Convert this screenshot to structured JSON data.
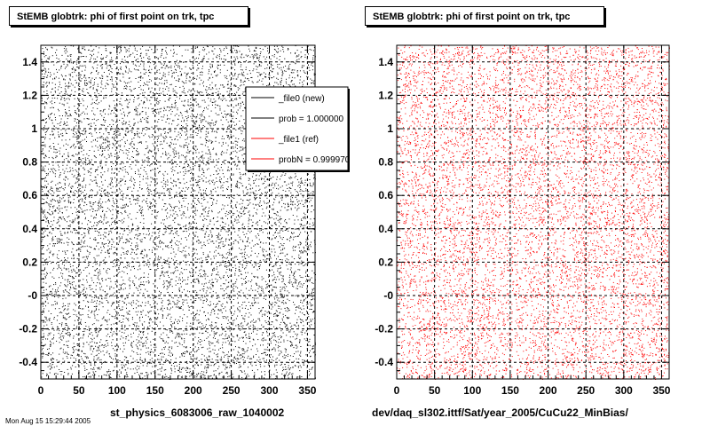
{
  "chart_data": [
    {
      "type": "scatter",
      "title": "StEMB globtrk: phi of first point on trk, tpc",
      "xlabel": "st_physics_6083006_raw_1040002",
      "ylabel": "",
      "xlim": [
        0,
        360
      ],
      "ylim": [
        -0.5,
        1.5
      ],
      "xticks": [
        0,
        50,
        100,
        150,
        200,
        250,
        300,
        350
      ],
      "yticks": [
        -0.4,
        -0.2,
        -0.0,
        0.2,
        0.4,
        0.6,
        0.8,
        1.0,
        1.2,
        1.4
      ],
      "ytick_labels": [
        "-0.4",
        "-0.2",
        "-0",
        "0.2",
        "0.4",
        "0.6",
        "0.8",
        "1",
        "1.2",
        "1.4"
      ],
      "grid": true,
      "marker_color": "#000000",
      "distribution": "uniform random points over x 0–360, y -0.5–1.5",
      "legend": {
        "placement": "top-right",
        "entries": [
          {
            "label": "_file0 (new)",
            "color": "#000000"
          },
          {
            "label": "prob = 1.000000",
            "color": "#000000"
          },
          {
            "label": "_file1 (ref)",
            "color": "#ff0000"
          },
          {
            "label": "probN = 0.999970",
            "color": "#ff0000"
          }
        ]
      }
    },
    {
      "type": "scatter",
      "title": "StEMB globtrk: phi of first point on trk, tpc",
      "xlabel": "dev/daq_sl302.ittf/Sat/year_2005/CuCu22_MinBias/",
      "ylabel": "",
      "xlim": [
        0,
        360
      ],
      "ylim": [
        -0.5,
        1.5
      ],
      "xticks": [
        0,
        50,
        100,
        150,
        200,
        250,
        300,
        350
      ],
      "yticks": [
        -0.4,
        -0.2,
        -0.0,
        0.2,
        0.4,
        0.6,
        0.8,
        1.0,
        1.2,
        1.4
      ],
      "ytick_labels": [
        "-0.4",
        "-0.2",
        "-0",
        "0.2",
        "0.4",
        "0.6",
        "0.8",
        "1",
        "1.2",
        "1.4"
      ],
      "grid": true,
      "marker_color": "#ff0000",
      "distribution": "uniform random points over x 0–360, y -0.5–1.5"
    }
  ],
  "footer": {
    "left_text": "Mon Aug 15 15:29:44 2005"
  }
}
